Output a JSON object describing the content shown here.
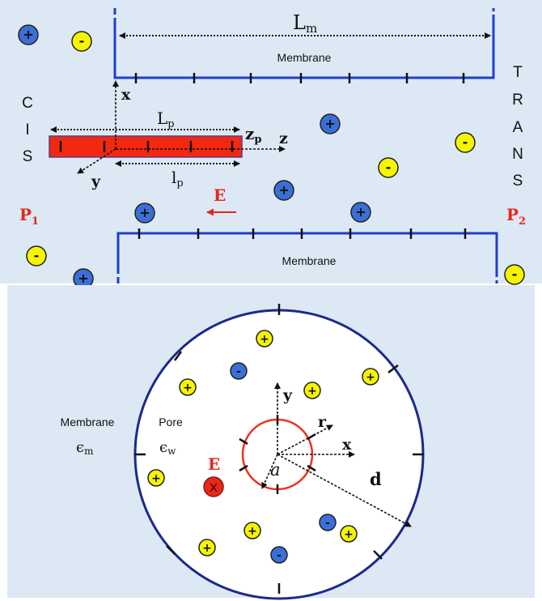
{
  "top_panel": {
    "membrane_top_label": "Membrane",
    "membrane_bottom_label": "Membrane",
    "lm_main": "L",
    "lm_sub": "m",
    "lp_main": "L",
    "lp_sub": "p",
    "lp_small_main": "l",
    "lp_small_sub": "p",
    "zp_main": "z",
    "zp_sub": "p",
    "axis_x": "x",
    "axis_y": "y",
    "axis_z": "z",
    "field": "E",
    "cis_letters": [
      "C",
      "I",
      "S"
    ],
    "trans_letters": [
      "T",
      "R",
      "A",
      "N",
      "S"
    ],
    "p1_main": "P",
    "p1_sub": "1",
    "p2_main": "P",
    "p2_sub": "2",
    "plus_symbol": "+",
    "minus_symbol": "-"
  },
  "bottom_panel": {
    "membrane_label": "Membrane",
    "pore_label": "Pore",
    "eps_m_main": "ϵ",
    "eps_m_sub": "m",
    "eps_w_main": "ϵ",
    "eps_w_sub": "w",
    "field": "E",
    "field_marker": "X",
    "axis_x": "x",
    "axis_y": "y",
    "axis_r": "r",
    "radius_a": "a",
    "radius_d": "d"
  },
  "colors": {
    "panel_bg": "#dde8f5",
    "membrane_line": "#1f3fc8",
    "pore_fill": "#ffffff",
    "pore_ring": "#1a2a8c",
    "cation_fill": "#3b6fd8",
    "anion_fill": "#f5f500",
    "polymer_fill": "#f22810",
    "field_red": "#e8261a",
    "inner_ring": "#f0321e"
  },
  "icons": {
    "cation": "blue-plus-ion-icon",
    "anion": "yellow-minus-ion-icon"
  }
}
